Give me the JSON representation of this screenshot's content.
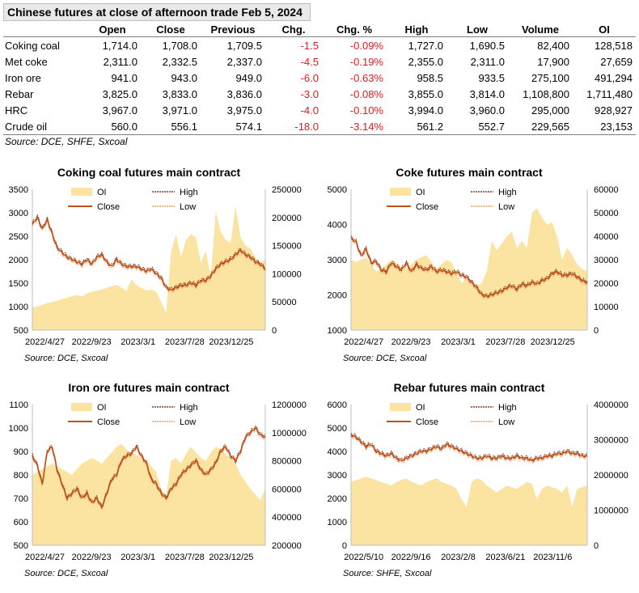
{
  "table": {
    "title": "Chinese futures at close of afternoon trade Feb 5, 2024",
    "columns": [
      "",
      "Open",
      "Close",
      "Previous",
      "Chg.",
      "Chg. %",
      "High",
      "Low",
      "Volume",
      "OI"
    ],
    "rows": [
      [
        "Coking coal",
        "1,714.0",
        "1,708.0",
        "1,709.5",
        "-1.5",
        "-0.09%",
        "1,727.0",
        "1,690.5",
        "82,400",
        "128,518"
      ],
      [
        "Met coke",
        "2,311.0",
        "2,332.5",
        "2,337.0",
        "-4.5",
        "-0.19%",
        "2,355.0",
        "2,311.0",
        "17,900",
        "27,659"
      ],
      [
        "Iron ore",
        "941.0",
        "943.0",
        "949.0",
        "-6.0",
        "-0.63%",
        "958.5",
        "933.5",
        "275,100",
        "491,294"
      ],
      [
        "Rebar",
        "3,825.0",
        "3,833.0",
        "3,836.0",
        "-3.0",
        "-0.08%",
        "3,855.0",
        "3,814.0",
        "1,108,800",
        "1,711,480"
      ],
      [
        "HRC",
        "3,967.0",
        "3,971.0",
        "3,975.0",
        "-4.0",
        "-0.10%",
        "3,994.0",
        "3,960.0",
        "295,000",
        "928,927"
      ],
      [
        "Crude oil",
        "560.0",
        "556.1",
        "574.1",
        "-18.0",
        "-3.14%",
        "561.2",
        "552.7",
        "229,565",
        "23,153"
      ]
    ],
    "source": "Source: DCE, SHFE, Sxcoal"
  },
  "colors": {
    "oi": "#fbe3a1",
    "close": "#c0501a",
    "high": "#8b3a1a",
    "low": "#f0a060",
    "negative": "#e0191c",
    "grid": "#d9d9d9"
  },
  "chart_data": [
    {
      "type": "line",
      "title": "Coking coal futures main contract",
      "x_tick_labels": [
        "2022/4/27",
        "2022/9/23",
        "2023/3/1",
        "2023/7/28",
        "2023/12/25"
      ],
      "y_left": {
        "min": 500,
        "max": 3500,
        "ticks": [
          500,
          1000,
          1500,
          2000,
          2500,
          3000,
          3500
        ]
      },
      "y_right": {
        "min": 0,
        "max": 250000,
        "ticks": [
          0,
          50000,
          100000,
          150000,
          200000,
          250000
        ]
      },
      "legend": [
        "OI",
        "High",
        "Close",
        "Low"
      ],
      "source": "Source: DCE, Sxcoal",
      "close": [
        2750,
        2900,
        2650,
        2850,
        2550,
        2250,
        2150,
        2050,
        2000,
        1950,
        1900,
        2000,
        1900,
        2050,
        2100,
        1950,
        1850,
        2000,
        1900,
        1850,
        1850,
        1850,
        1800,
        1750,
        1800,
        1700,
        1600,
        1400,
        1350,
        1400,
        1450,
        1450,
        1500,
        1450,
        1550,
        1550,
        1650,
        1800,
        1900,
        1950,
        2000,
        2100,
        2200,
        2100,
        2050,
        1950,
        1900,
        1800
      ],
      "oi": [
        40000,
        42000,
        45000,
        48000,
        50000,
        52000,
        55000,
        58000,
        60000,
        62000,
        60000,
        65000,
        68000,
        70000,
        72000,
        75000,
        78000,
        80000,
        75000,
        70000,
        90000,
        80000,
        75000,
        70000,
        72000,
        68000,
        50000,
        30000,
        140000,
        170000,
        130000,
        160000,
        170000,
        165000,
        120000,
        140000,
        95000,
        210000,
        175000,
        160000,
        155000,
        220000,
        165000,
        150000,
        145000,
        130000,
        120000,
        125000
      ]
    },
    {
      "type": "line",
      "title": "Coke futures main contract",
      "x_tick_labels": [
        "2022/4/27",
        "2022/9/23",
        "2023/3/1",
        "2023/7/28",
        "2023/12/25"
      ],
      "y_left": {
        "min": 1000,
        "max": 5000,
        "ticks": [
          1000,
          2000,
          3000,
          4000,
          5000
        ]
      },
      "y_right": {
        "min": 0,
        "max": 60000,
        "ticks": [
          0,
          10000,
          20000,
          30000,
          40000,
          50000,
          60000
        ]
      },
      "legend": [
        "OI",
        "High",
        "Close",
        "Low"
      ],
      "source": "Source: DCE, Sxcoal",
      "close": [
        3600,
        3500,
        3100,
        3300,
        2900,
        2950,
        2700,
        2650,
        2900,
        2800,
        2700,
        2900,
        2650,
        2850,
        2750,
        2700,
        2800,
        2650,
        2700,
        2650,
        2600,
        2650,
        2550,
        2500,
        2350,
        2200,
        2000,
        1950,
        2000,
        2050,
        2100,
        2200,
        2250,
        2150,
        2300,
        2250,
        2350,
        2300,
        2400,
        2450,
        2600,
        2650,
        2550,
        2550,
        2600,
        2500,
        2400,
        2350
      ],
      "oi": [
        30000,
        29000,
        30000,
        31000,
        28000,
        25000,
        26000,
        28000,
        30000,
        29000,
        27000,
        26000,
        28000,
        30000,
        31000,
        32000,
        29000,
        26000,
        28000,
        30000,
        29000,
        24000,
        20000,
        22000,
        21000,
        19000,
        20000,
        25000,
        38000,
        34000,
        37000,
        40000,
        42000,
        35000,
        38000,
        35000,
        50000,
        52000,
        48000,
        45000,
        46000,
        40000,
        30000,
        35000,
        32000,
        28000,
        26000,
        25000
      ]
    },
    {
      "type": "line",
      "title": "Iron ore futures main contract",
      "x_tick_labels": [
        "2022/4/27",
        "2022/9/23",
        "2023/3/1",
        "2023/7/28",
        "2023/12/25"
      ],
      "y_left": {
        "min": 500,
        "max": 1100,
        "ticks": [
          500,
          600,
          700,
          800,
          900,
          1000,
          1100
        ]
      },
      "y_right": {
        "min": 200000,
        "max": 1200000,
        "ticks": [
          200000,
          400000,
          600000,
          800000,
          1000000,
          1200000
        ]
      },
      "legend": [
        "OI",
        "High",
        "Close",
        "Low"
      ],
      "source": "Source: DCE, Sxcoal",
      "close": [
        880,
        840,
        760,
        900,
        920,
        820,
        760,
        700,
        720,
        740,
        700,
        720,
        680,
        700,
        660,
        720,
        780,
        800,
        860,
        880,
        890,
        920,
        880,
        850,
        780,
        760,
        720,
        700,
        740,
        760,
        800,
        820,
        840,
        860,
        820,
        800,
        820,
        850,
        900,
        920,
        880,
        860,
        900,
        960,
        980,
        1000,
        970,
        960
      ],
      "oi": [
        700000,
        720000,
        740000,
        760000,
        780000,
        760000,
        740000,
        720000,
        700000,
        740000,
        780000,
        800000,
        820000,
        800000,
        780000,
        820000,
        860000,
        900000,
        920000,
        880000,
        860000,
        840000,
        820000,
        800000,
        760000,
        720000,
        600000,
        550000,
        800000,
        820000,
        780000,
        850000,
        900000,
        860000,
        820000,
        800000,
        860000,
        900000,
        880000,
        850000,
        820000,
        780000,
        700000,
        650000,
        600000,
        560000,
        520000,
        600000
      ]
    },
    {
      "type": "line",
      "title": "Rebar futures main contract",
      "x_tick_labels": [
        "2022/5/10",
        "2022/9/16",
        "2023/2/8",
        "2023/6/21",
        "2023/11/6"
      ],
      "y_left": {
        "min": 0,
        "max": 6000,
        "ticks": [
          0,
          1000,
          2000,
          3000,
          4000,
          5000,
          6000
        ]
      },
      "y_right": {
        "min": 0,
        "max": 4000000,
        "ticks": [
          0,
          1000000,
          2000000,
          3000000,
          4000000
        ]
      },
      "legend": [
        "OI",
        "High",
        "Close",
        "Low"
      ],
      "source": "Source: SHFE, Sxcoal",
      "close": [
        4700,
        4600,
        4400,
        4200,
        4300,
        4000,
        3900,
        3800,
        3900,
        3700,
        3600,
        3700,
        3800,
        3900,
        4000,
        4000,
        4100,
        4200,
        4100,
        4300,
        4200,
        4100,
        4000,
        3900,
        3800,
        3700,
        3700,
        3800,
        3700,
        3700,
        3800,
        3700,
        3700,
        3800,
        3700,
        3700,
        3600,
        3700,
        3700,
        3800,
        3800,
        3900,
        3900,
        4000,
        3900,
        3900,
        3800,
        3800
      ],
      "oi": [
        1800000,
        1850000,
        1900000,
        1950000,
        1900000,
        1850000,
        1800000,
        1750000,
        1700000,
        1800000,
        1850000,
        1900000,
        1800000,
        1750000,
        1700000,
        1800000,
        1850000,
        1900000,
        1800000,
        1750000,
        1700000,
        1600000,
        1300000,
        1100000,
        1800000,
        1900000,
        1850000,
        1700000,
        1600000,
        1500000,
        1600000,
        1700000,
        1650000,
        1600000,
        1700000,
        1800000,
        1750000,
        1300000,
        1600000,
        1700000,
        1650000,
        1600000,
        1500000,
        1700000,
        1100000,
        1600000,
        1650000,
        1700000
      ]
    }
  ]
}
